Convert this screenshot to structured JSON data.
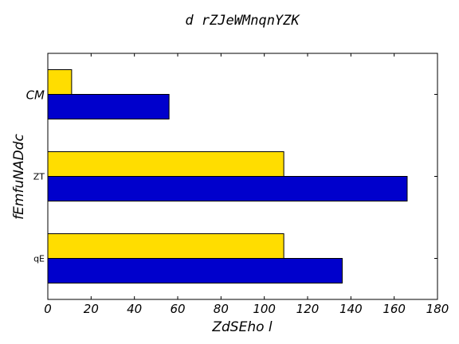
{
  "chart_data": {
    "type": "bar",
    "orientation": "horizontal",
    "title": "d rZJeWMnqnYZK",
    "xlabel": "ZdSEho l",
    "ylabel": "fEmfuNADdc",
    "categories": [
      "qE",
      "ZT",
      "CM"
    ],
    "series": [
      {
        "color": "#0000cc",
        "values": [
          136,
          166,
          56
        ]
      },
      {
        "color": "#ffdd00",
        "values": [
          109,
          109,
          11
        ]
      }
    ],
    "xlim": [
      0,
      180
    ],
    "xticks": [
      0,
      20,
      40,
      60,
      80,
      100,
      120,
      140,
      160,
      180
    ],
    "grid": false
  }
}
